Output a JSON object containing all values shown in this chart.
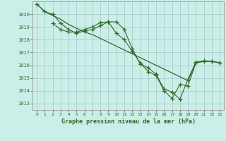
{
  "title": "Graphe pression niveau de la mer (hPa)",
  "background_color": "#cceee8",
  "grid_color": "#aacccc",
  "line_color": "#2d6a2d",
  "ylim": [
    1012.5,
    1021.0
  ],
  "xlim": [
    -0.5,
    23.5
  ],
  "yticks": [
    1013,
    1014,
    1015,
    1016,
    1017,
    1018,
    1019,
    1020
  ],
  "xticks": [
    0,
    1,
    2,
    3,
    4,
    5,
    6,
    7,
    8,
    9,
    10,
    11,
    12,
    13,
    14,
    15,
    16,
    17,
    18,
    19,
    20,
    21,
    22,
    23
  ],
  "series1_x": [
    0,
    1,
    2,
    3,
    4,
    5,
    6,
    7,
    8,
    9,
    10,
    11,
    12,
    13,
    14,
    15,
    16,
    17,
    18,
    19,
    20,
    21,
    22,
    23
  ],
  "series1_y": [
    1020.8,
    1020.2,
    1020.0,
    1019.3,
    1018.8,
    1018.5,
    1018.7,
    1018.8,
    1019.1,
    1019.4,
    1018.5,
    1018.0,
    1017.1,
    1016.2,
    1015.5,
    1015.2,
    1014.0,
    1013.4,
    1014.5,
    1014.4,
    1016.2,
    1016.3,
    1016.3,
    1016.2
  ],
  "series2_x": [
    2,
    3,
    4,
    5,
    6,
    7,
    8,
    9,
    10,
    11,
    12,
    13,
    14,
    15,
    16,
    17,
    18,
    19,
    20,
    21,
    22,
    23
  ],
  "series2_y": [
    1019.3,
    1018.8,
    1018.6,
    1018.6,
    1018.8,
    1019.0,
    1019.35,
    1019.4,
    1019.4,
    1018.8,
    1017.3,
    1016.1,
    1015.8,
    1015.3,
    1014.15,
    1013.9,
    1013.35,
    1014.9,
    1016.25,
    1016.35,
    1016.3,
    1016.2
  ],
  "series3_x": [
    0,
    1,
    2,
    3,
    4,
    5,
    6,
    7,
    8,
    9,
    10,
    11,
    12,
    13,
    14,
    15,
    16,
    17,
    18,
    19,
    20,
    21,
    22,
    23
  ],
  "series3_y": [
    1020.8,
    1020.2,
    1019.9,
    1019.6,
    1019.2,
    1018.9,
    1018.6,
    1018.4,
    1018.1,
    1017.8,
    1017.5,
    1017.2,
    1016.9,
    1016.6,
    1016.3,
    1016.0,
    1015.7,
    1015.4,
    1015.1,
    1014.8,
    1016.2,
    1016.3,
    1016.3,
    1016.2
  ]
}
